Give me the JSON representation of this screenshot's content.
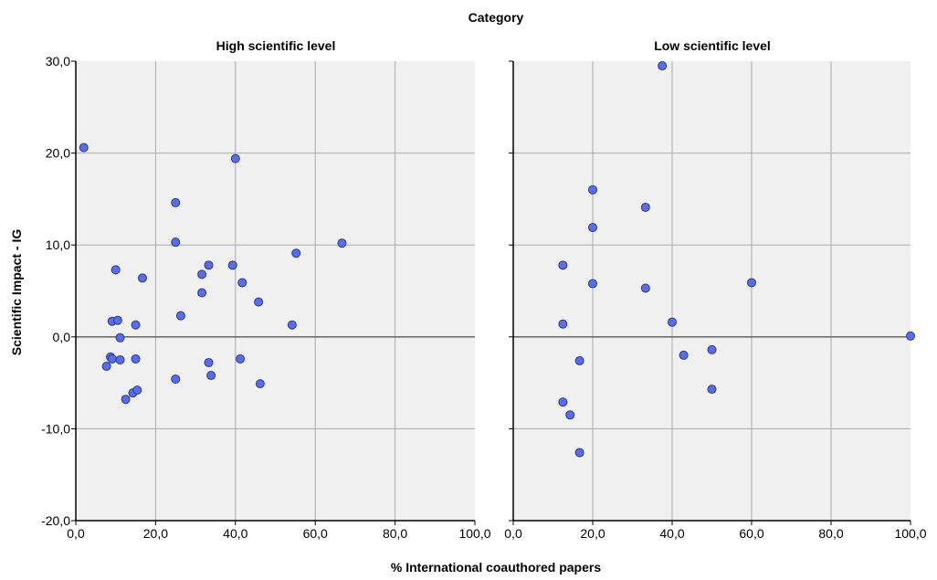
{
  "chart_data": {
    "type": "scatter",
    "title": "Category",
    "xlabel": "% International coauthored papers",
    "ylabel": "Scientific Impact - IG",
    "xlim": [
      0,
      100
    ],
    "ylim": [
      -20,
      30
    ],
    "x_ticks": [
      "0,0",
      "20,0",
      "40,0",
      "60,0",
      "80,0",
      "100,0"
    ],
    "y_ticks": [
      "-20,0",
      "-10,0",
      "0,0",
      "10,0",
      "20,0",
      "30,0"
    ],
    "x_tick_values": [
      0,
      20,
      40,
      60,
      80,
      100
    ],
    "y_tick_values": [
      -20,
      -10,
      0,
      10,
      20,
      30
    ],
    "reference_line_y": 0,
    "grid": true,
    "colors": {
      "marker_fill": "#5b6ee1",
      "marker_edge": "#2a3799",
      "panel_bg": "#f0f0f0",
      "grid": "#aaaaaa",
      "refline": "#6e6e6e"
    },
    "panels": [
      {
        "name": "High scientific level",
        "points": [
          {
            "x": 2.0,
            "y": 20.6
          },
          {
            "x": 7.7,
            "y": -3.2
          },
          {
            "x": 8.7,
            "y": -2.2
          },
          {
            "x": 9.1,
            "y": -2.4
          },
          {
            "x": 9.1,
            "y": 1.7
          },
          {
            "x": 10.0,
            "y": 7.3
          },
          {
            "x": 10.5,
            "y": 1.8
          },
          {
            "x": 11.1,
            "y": -2.5
          },
          {
            "x": 11.1,
            "y": -0.1
          },
          {
            "x": 12.5,
            "y": -6.8
          },
          {
            "x": 14.3,
            "y": -6.1
          },
          {
            "x": 15.0,
            "y": -2.4
          },
          {
            "x": 15.0,
            "y": 1.3
          },
          {
            "x": 15.4,
            "y": -5.8
          },
          {
            "x": 16.7,
            "y": 6.4
          },
          {
            "x": 25.0,
            "y": 14.6
          },
          {
            "x": 25.0,
            "y": 10.3
          },
          {
            "x": 25.0,
            "y": -4.6
          },
          {
            "x": 26.3,
            "y": 2.3
          },
          {
            "x": 31.6,
            "y": 6.8
          },
          {
            "x": 31.6,
            "y": 4.8
          },
          {
            "x": 33.3,
            "y": 7.8
          },
          {
            "x": 33.3,
            "y": -2.8
          },
          {
            "x": 33.9,
            "y": -4.2
          },
          {
            "x": 39.3,
            "y": 7.8
          },
          {
            "x": 40.0,
            "y": 19.4
          },
          {
            "x": 41.2,
            "y": -2.4
          },
          {
            "x": 41.7,
            "y": 5.9
          },
          {
            "x": 45.8,
            "y": 3.8
          },
          {
            "x": 46.2,
            "y": -5.1
          },
          {
            "x": 54.2,
            "y": 1.3
          },
          {
            "x": 55.2,
            "y": 9.1
          },
          {
            "x": 66.7,
            "y": 10.2
          }
        ]
      },
      {
        "name": "Low scientific level",
        "points": [
          {
            "x": 37.5,
            "y": 29.5
          },
          {
            "x": 20.0,
            "y": 16.0
          },
          {
            "x": 33.3,
            "y": 14.1
          },
          {
            "x": 20.0,
            "y": 11.9
          },
          {
            "x": 12.5,
            "y": 7.8
          },
          {
            "x": 20.0,
            "y": 5.8
          },
          {
            "x": 60.0,
            "y": 5.9
          },
          {
            "x": 33.3,
            "y": 5.3
          },
          {
            "x": 12.5,
            "y": 1.4
          },
          {
            "x": 40.0,
            "y": 1.6
          },
          {
            "x": 100.0,
            "y": 0.1
          },
          {
            "x": 50.0,
            "y": -1.4
          },
          {
            "x": 42.9,
            "y": -2.0
          },
          {
            "x": 16.7,
            "y": -2.6
          },
          {
            "x": 50.0,
            "y": -5.7
          },
          {
            "x": 12.5,
            "y": -7.1
          },
          {
            "x": 14.3,
            "y": -8.5
          },
          {
            "x": 16.7,
            "y": -12.6
          }
        ]
      }
    ]
  }
}
